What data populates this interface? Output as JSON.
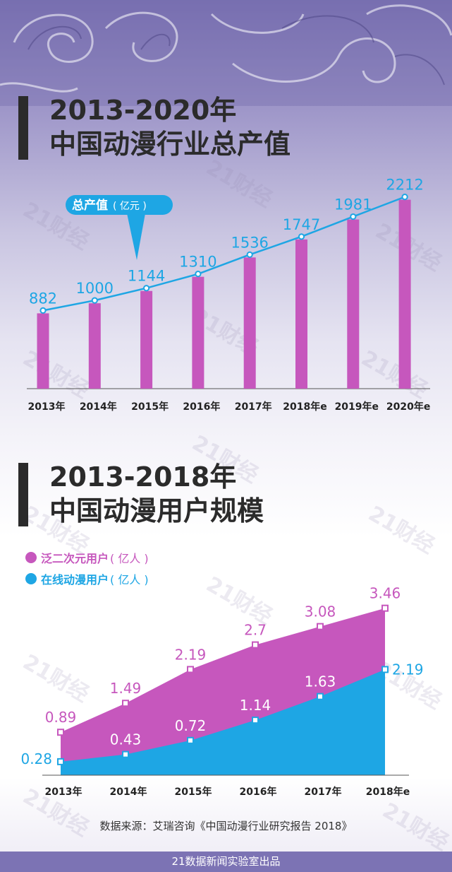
{
  "watermark": "21财经",
  "charts": {
    "output": {
      "title_line1": "2013-2020年",
      "title_line2": "中国动漫行业总产值",
      "callout": {
        "label": "总产值",
        "unit": "( 亿元 )"
      },
      "color_bar": "#c657bd",
      "color_line": "#1ea6e4"
    },
    "users": {
      "title_line1": "2013-2018年",
      "title_line2": "中国动漫用户规模",
      "legend": [
        {
          "label": "泛二次元用户",
          "unit": "( 亿人 )",
          "color": "#c657bd"
        },
        {
          "label": "在线动漫用户",
          "unit": "( 亿人 )",
          "color": "#1ea6e4"
        }
      ]
    }
  },
  "chart_data": [
    {
      "type": "bar",
      "title": "2013-2020年 中国动漫行业总产值",
      "categories": [
        "2013年",
        "2014年",
        "2015年",
        "2016年",
        "2017年",
        "2018年e",
        "2019年e",
        "2020年e"
      ],
      "values": [
        882,
        1000,
        1144,
        1310,
        1536,
        1747,
        1981,
        2212
      ],
      "overlay_line": true,
      "ylabel": "总产值( 亿元 )",
      "ylim": [
        0,
        2300
      ]
    },
    {
      "type": "area",
      "title": "2013-2018年 中国动漫用户规模",
      "categories": [
        "2013年",
        "2014年",
        "2015年",
        "2016年",
        "2017年",
        "2018年e"
      ],
      "series": [
        {
          "name": "泛二次元用户",
          "values": [
            0.89,
            1.49,
            2.19,
            2.7,
            3.08,
            3.46
          ]
        },
        {
          "name": "在线动漫用户",
          "values": [
            0.28,
            0.43,
            0.72,
            1.14,
            1.63,
            2.19
          ]
        }
      ],
      "ylim": [
        0,
        3.5
      ]
    }
  ],
  "source_text": "数据来源：艾瑞咨询《中国动漫行业研究报告 2018》",
  "footer_text": "21数据新闻实验室出品"
}
